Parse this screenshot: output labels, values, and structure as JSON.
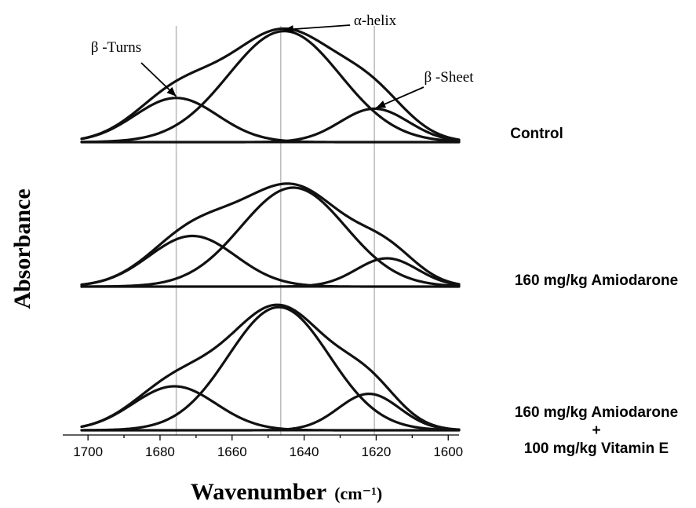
{
  "chart_data": {
    "type": "line",
    "title": "",
    "xlabel": "Wavenumber",
    "xlabel_unit": "(cm⁻¹)",
    "ylabel": "Absorbance",
    "x_reversed": true,
    "xlim": [
      1707,
      1597
    ],
    "x_ticks": [
      1700,
      1680,
      1660,
      1640,
      1620,
      1600
    ],
    "x_tick_labels": [
      "1700",
      "1680",
      "1660",
      "1640",
      "1620",
      "1600"
    ],
    "grid": false,
    "guide_lines_x": [
      1675.5,
      1646.5,
      1620.5
    ],
    "annotations": [
      {
        "text": "β -Turns",
        "points_to_x": 1675.5,
        "panel": 0
      },
      {
        "text": "α-helix",
        "points_to_x": 1646.5,
        "panel": 0
      },
      {
        "text": "β -Sheet",
        "points_to_x": 1620.5,
        "panel": 0
      }
    ],
    "panels": [
      {
        "label": "Control",
        "components": [
          {
            "role": "β-turns",
            "center": 1675.5,
            "height": 0.37,
            "width": 11.5
          },
          {
            "role": "α-helix",
            "center": 1645.5,
            "height": 0.93,
            "width": 15.5
          },
          {
            "role": "β-sheet",
            "center": 1620.5,
            "height": 0.28,
            "width": 9.5
          }
        ]
      },
      {
        "label": "160 mg/kg Amiodarone",
        "components": [
          {
            "role": "β-turns",
            "center": 1671,
            "height": 0.43,
            "width": 12
          },
          {
            "role": "α-helix",
            "center": 1643,
            "height": 0.84,
            "width": 14.5
          },
          {
            "role": "β-sheet",
            "center": 1617,
            "height": 0.24,
            "width": 8.5
          }
        ]
      },
      {
        "label": "160 mg/kg Amiodarone\n+\n100 mg/kg Vitamin E",
        "label_lines": [
          "160 mg/kg Amiodarone",
          "+",
          "100 mg/kg Vitamin E"
        ],
        "components": [
          {
            "role": "β-turns",
            "center": 1676,
            "height": 0.35,
            "width": 11.5
          },
          {
            "role": "α-helix",
            "center": 1647,
            "height": 0.98,
            "width": 14
          },
          {
            "role": "β-sheet",
            "center": 1622,
            "height": 0.29,
            "width": 8.5
          }
        ]
      }
    ]
  }
}
